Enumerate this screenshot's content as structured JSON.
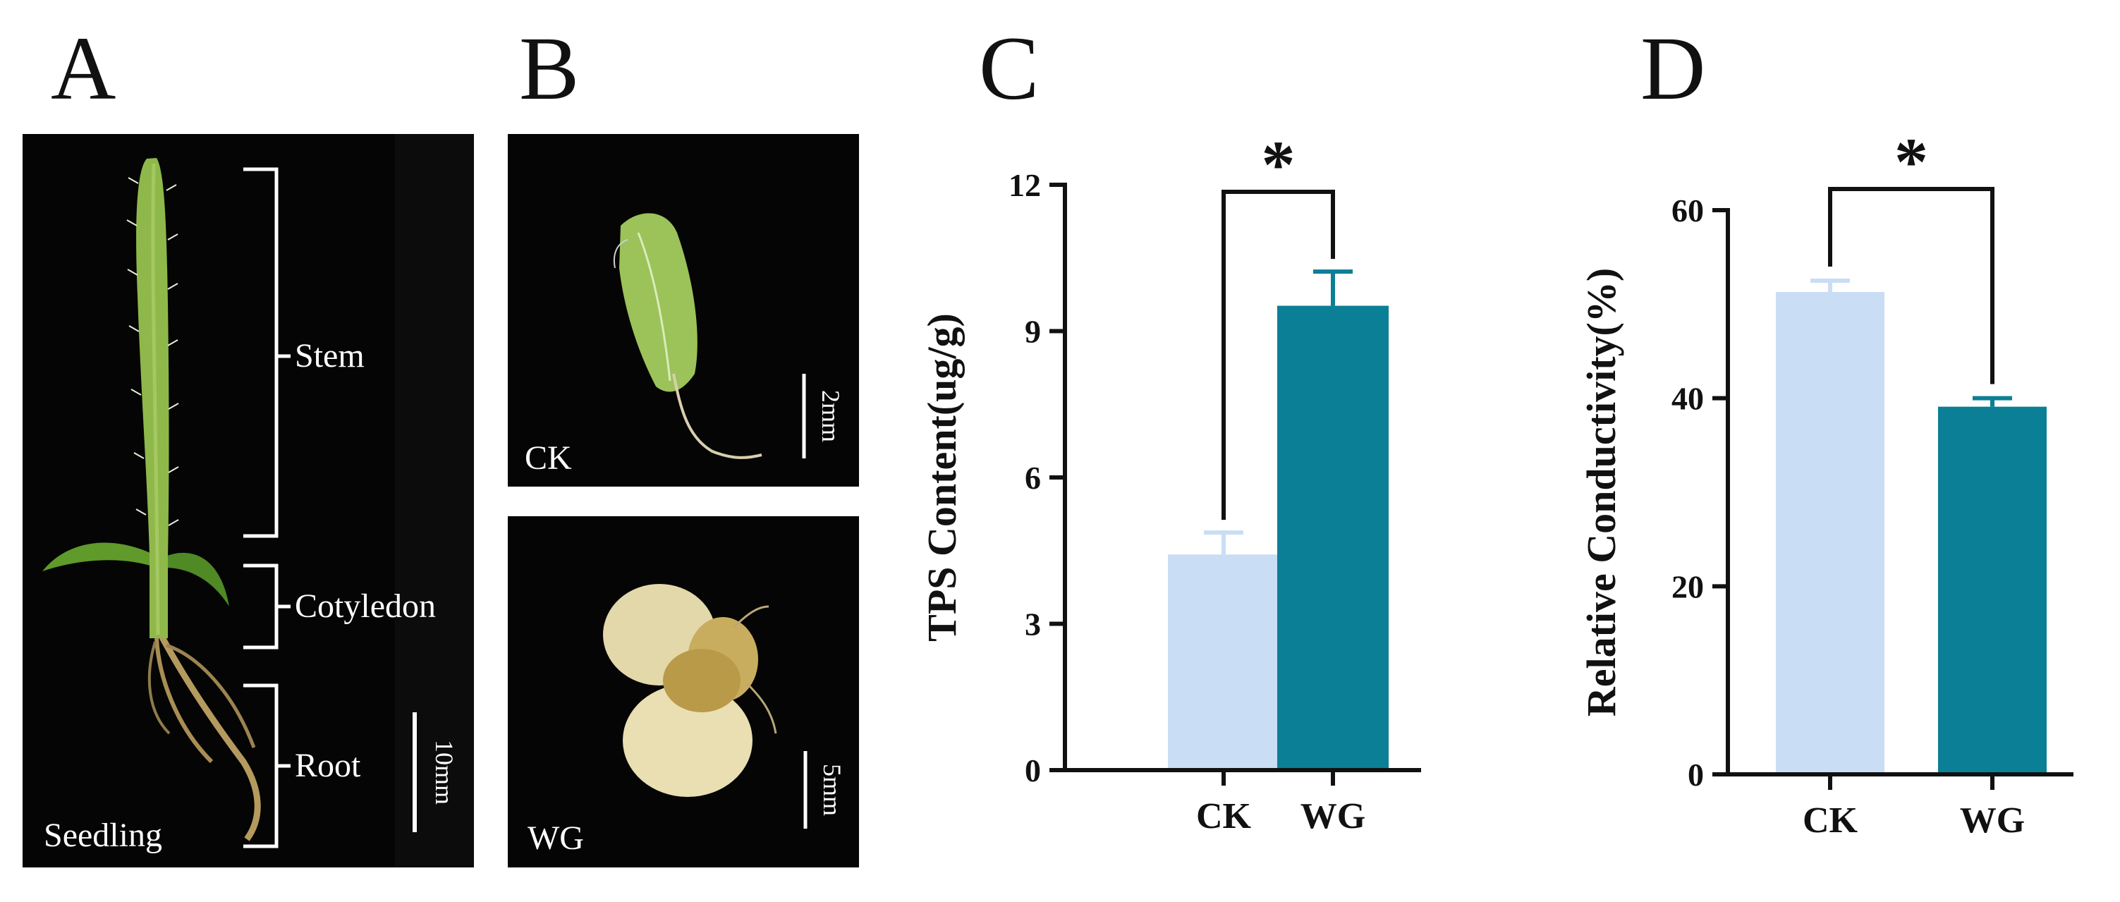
{
  "panels": {
    "a": {
      "letter": "A",
      "caption": "Seedling",
      "labels": {
        "stem": "Stem",
        "cotyledon": "Cotyledon",
        "root": "Root"
      },
      "scale": "10mm"
    },
    "b": {
      "letter": "B",
      "ck_caption": "CK",
      "ck_scale": "2mm",
      "wg_caption": "WG",
      "wg_scale": "5mm"
    },
    "c": {
      "letter": "C"
    },
    "d": {
      "letter": "D"
    }
  },
  "colors": {
    "ck": "#c9ddf5",
    "wg": "#0b7f95",
    "axis": "#111111",
    "photo_bg": "#050505"
  },
  "chart_data": [
    {
      "type": "bar",
      "ylabel": "TPS Content(ug/g)",
      "categories": [
        "CK",
        "WG"
      ],
      "values": [
        4.42,
        9.52
      ],
      "errors": [
        0.45,
        0.7
      ],
      "ylim": [
        0,
        12
      ],
      "yticks": [
        "0",
        "3",
        "6",
        "9",
        "12"
      ],
      "significance": "*",
      "grid": false
    },
    {
      "type": "bar",
      "ylabel": "Relative Conductivity(%)",
      "categories": [
        "CK",
        "WG"
      ],
      "values": [
        51.3,
        39.1
      ],
      "errors": [
        1.2,
        0.9
      ],
      "ylim": [
        0,
        60
      ],
      "yticks": [
        "0",
        "20",
        "40",
        "60"
      ],
      "significance": "*",
      "grid": false
    }
  ]
}
